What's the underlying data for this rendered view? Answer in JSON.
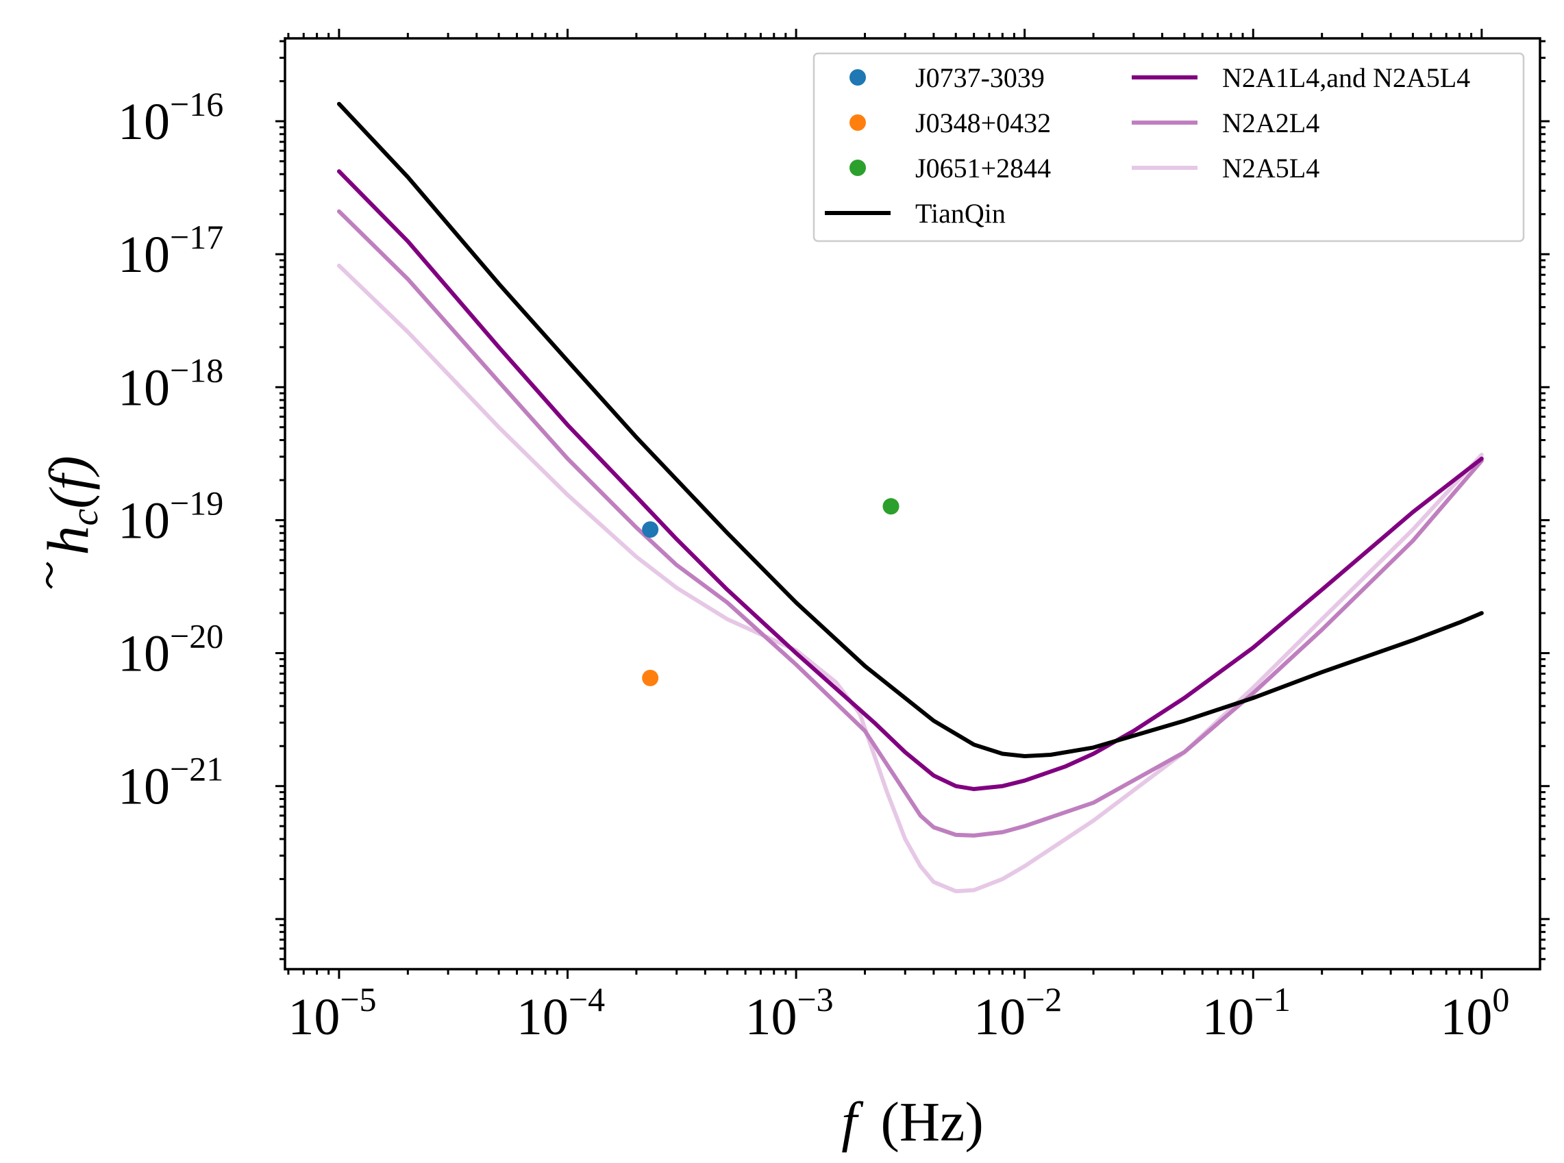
{
  "chart_data": {
    "type": "line",
    "title": "",
    "xlabel": "f (Hz)",
    "xlabel_parts": {
      "var": "f",
      "unit": "(Hz)"
    },
    "ylabel": "h̃_c(f)",
    "ylabel_parts": {
      "symbol": "h",
      "subscript": "c",
      "arg": "(f)"
    },
    "xscale": "log",
    "yscale": "log",
    "xlim": [
      5.8e-06,
      1.8
    ],
    "ylim": [
      4.2e-23,
      4.2e-16
    ],
    "x_ticks": [
      {
        "value": 1e-05,
        "base": "10",
        "exp": "−5"
      },
      {
        "value": 0.0001,
        "base": "10",
        "exp": "−4"
      },
      {
        "value": 0.001,
        "base": "10",
        "exp": "−3"
      },
      {
        "value": 0.01,
        "base": "10",
        "exp": "−2"
      },
      {
        "value": 0.1,
        "base": "10",
        "exp": "−1"
      },
      {
        "value": 1,
        "base": "10",
        "exp": "0"
      }
    ],
    "y_ticks": [
      {
        "value": 1e-16,
        "base": "10",
        "exp": "−16"
      },
      {
        "value": 1e-17,
        "base": "10",
        "exp": "−17"
      },
      {
        "value": 1e-18,
        "base": "10",
        "exp": "−18"
      },
      {
        "value": 1e-19,
        "base": "10",
        "exp": "−19"
      },
      {
        "value": 1e-20,
        "base": "10",
        "exp": "−20"
      },
      {
        "value": 1e-21,
        "base": "10",
        "exp": "−21"
      }
    ],
    "grid": false,
    "legend": {
      "position": "top-right",
      "columns": 2
    },
    "points": [
      {
        "name": "J0737-3039",
        "color": "#1f77b4",
        "x": 0.00023,
        "y": 8.5e-20
      },
      {
        "name": "J0348+0432",
        "color": "#ff7f0e",
        "x": 0.00023,
        "y": 6.5e-21
      },
      {
        "name": "J0651+2844",
        "color": "#2ca02c",
        "x": 0.0026,
        "y": 1.27e-19
      }
    ],
    "series": [
      {
        "name": "TianQin",
        "color": "#000000",
        "x": [
          1e-05,
          2e-05,
          5e-05,
          0.0001,
          0.0002,
          0.0005,
          0.001,
          0.002,
          0.004,
          0.006,
          0.008,
          0.01,
          0.013,
          0.02,
          0.05,
          0.1,
          0.2,
          0.5,
          0.8,
          1
        ],
        "y": [
          1.35e-16,
          3.8e-17,
          6e-18,
          1.58e-18,
          4.2e-19,
          8e-20,
          2.4e-20,
          8e-21,
          3.1e-21,
          2.05e-21,
          1.75e-21,
          1.68e-21,
          1.72e-21,
          1.95e-21,
          3.1e-21,
          4.6e-21,
          7.2e-21,
          1.25e-20,
          1.7e-20,
          2e-20
        ]
      },
      {
        "name": "N2A1L4,and N2A5L4",
        "color": "#800080",
        "x": [
          1e-05,
          2e-05,
          5e-05,
          0.0001,
          0.0002,
          0.0003,
          0.0005,
          0.001,
          0.0022,
          0.003,
          0.004,
          0.005,
          0.006,
          0.008,
          0.01,
          0.015,
          0.02,
          0.03,
          0.05,
          0.1,
          0.2,
          0.5,
          1
        ],
        "y": [
          4.2e-17,
          1.25e-17,
          2e-18,
          5.2e-19,
          1.5e-19,
          7.2e-20,
          3e-20,
          1e-20,
          3e-21,
          1.8e-21,
          1.2e-21,
          1e-21,
          9.5e-22,
          1e-21,
          1.1e-21,
          1.4e-21,
          1.75e-21,
          2.6e-21,
          4.6e-21,
          1.1e-20,
          3e-20,
          1.15e-19,
          2.9e-19
        ]
      },
      {
        "name": "N2A2L4",
        "color": "#bf7fbf",
        "x": [
          1e-05,
          2e-05,
          5e-05,
          0.0001,
          0.0002,
          0.0003,
          0.0005,
          0.001,
          0.002,
          0.003,
          0.0035,
          0.004,
          0.005,
          0.006,
          0.008,
          0.01,
          0.02,
          0.05,
          0.1,
          0.2,
          0.5,
          1
        ],
        "y": [
          2.1e-17,
          6.5e-18,
          1.1e-18,
          2.9e-19,
          8.8e-20,
          4.6e-20,
          2.4e-20,
          8.2e-21,
          2.6e-21,
          9e-22,
          6e-22,
          4.9e-22,
          4.3e-22,
          4.25e-22,
          4.5e-22,
          5e-22,
          7.5e-22,
          1.8e-21,
          5e-21,
          1.5e-20,
          7e-20,
          2.8e-19
        ]
      },
      {
        "name": "N2A5L4",
        "color": "#e6c8e6",
        "x": [
          1e-05,
          2e-05,
          5e-05,
          0.0001,
          0.0002,
          0.0003,
          0.0005,
          0.001,
          0.0015,
          0.0019,
          0.0025,
          0.003,
          0.0035,
          0.004,
          0.005,
          0.006,
          0.008,
          0.01,
          0.02,
          0.05,
          0.1,
          0.2,
          0.5,
          1
        ],
        "y": [
          8.2e-18,
          2.6e-18,
          5e-19,
          1.55e-19,
          5.3e-20,
          3.1e-20,
          1.8e-20,
          1.05e-20,
          6e-21,
          3.5e-21,
          9e-22,
          4e-22,
          2.5e-22,
          1.9e-22,
          1.62e-22,
          1.65e-22,
          2e-22,
          2.5e-22,
          5.5e-22,
          1.8e-21,
          5.5e-21,
          1.8e-20,
          8.5e-20,
          3.1e-19
        ]
      }
    ]
  }
}
